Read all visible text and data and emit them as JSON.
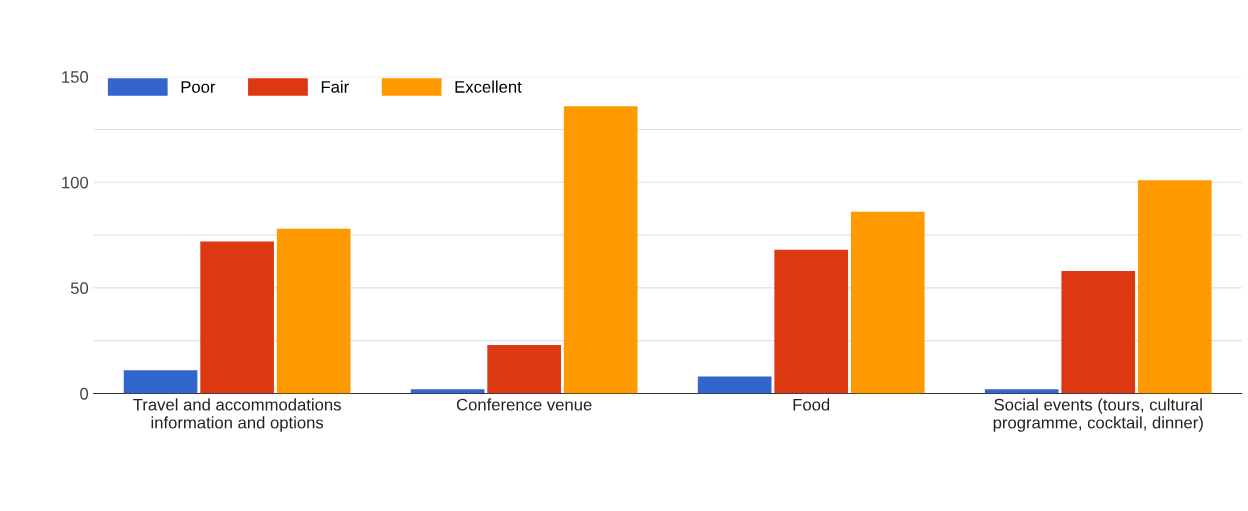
{
  "chart_data": {
    "type": "bar",
    "categories": [
      "Travel and accommodations\ninformation and options",
      "Conference venue",
      "Food",
      "Social events (tours, cultural\nprogramme, cocktail, dinner)"
    ],
    "series": [
      {
        "name": "Poor",
        "color": "#3366cc",
        "values": [
          11,
          2,
          8,
          2
        ]
      },
      {
        "name": "Fair",
        "color": "#dc3912",
        "values": [
          72,
          23,
          68,
          58
        ]
      },
      {
        "name": "Excellent",
        "color": "#ff9900",
        "values": [
          78,
          136,
          86,
          101
        ]
      }
    ],
    "ylim": [
      0,
      150
    ],
    "yticks": [
      0,
      {
        "value": 25,
        "label": null
      },
      50,
      {
        "value": 75,
        "label": null
      },
      100,
      {
        "value": 125,
        "label": null
      },
      150
    ],
    "grid": "y",
    "legend": "top left"
  }
}
